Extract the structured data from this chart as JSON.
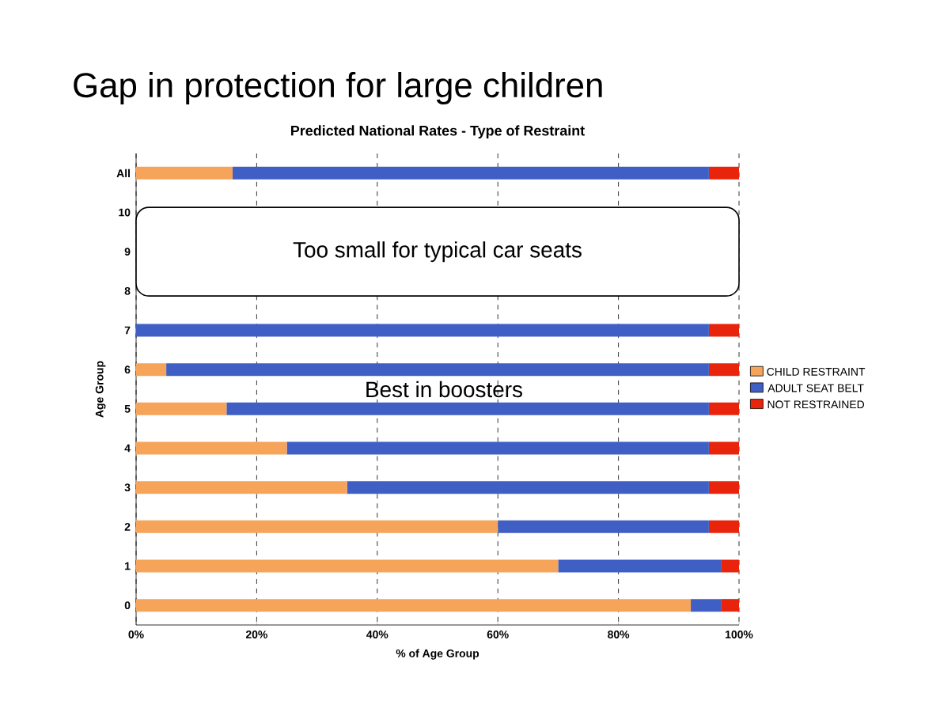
{
  "chart_data": {
    "type": "bar",
    "orientation": "horizontal",
    "stacked": true,
    "title": "Gap in protection for large children",
    "subtitle": "Predicted National Rates - Type of Restraint",
    "xlabel": "% of Age Group",
    "ylabel": "Age Group",
    "categories": [
      "All",
      "10",
      "9",
      "8",
      "7",
      "6",
      "5",
      "4",
      "3",
      "2",
      "1",
      "0"
    ],
    "series": [
      {
        "name": "CHILD RESTRAINT",
        "color": "#f5a45a",
        "values": [
          16,
          null,
          null,
          null,
          0,
          5,
          15,
          25,
          35,
          60,
          70,
          92
        ]
      },
      {
        "name": "ADULT SEAT BELT",
        "color": "#3f5fc4",
        "values": [
          79,
          null,
          null,
          null,
          95,
          90,
          80,
          70,
          60,
          35,
          27,
          5
        ]
      },
      {
        "name": "NOT RESTRAINED",
        "color": "#e8240c",
        "values": [
          5,
          null,
          null,
          null,
          5,
          5,
          5,
          5,
          5,
          5,
          3,
          3
        ]
      }
    ],
    "xlim": [
      0,
      100
    ],
    "xticks": [
      {
        "value": 0,
        "label": "0%"
      },
      {
        "value": 20,
        "label": "20%"
      },
      {
        "value": 40,
        "label": "40%"
      },
      {
        "value": 60,
        "label": "60%"
      },
      {
        "value": 80,
        "label": "80%"
      },
      {
        "value": 100,
        "label": "100%"
      }
    ],
    "grid": "x",
    "legend": "right",
    "annotations": [
      "Too small for typical car seats",
      "Best in boosters"
    ]
  }
}
